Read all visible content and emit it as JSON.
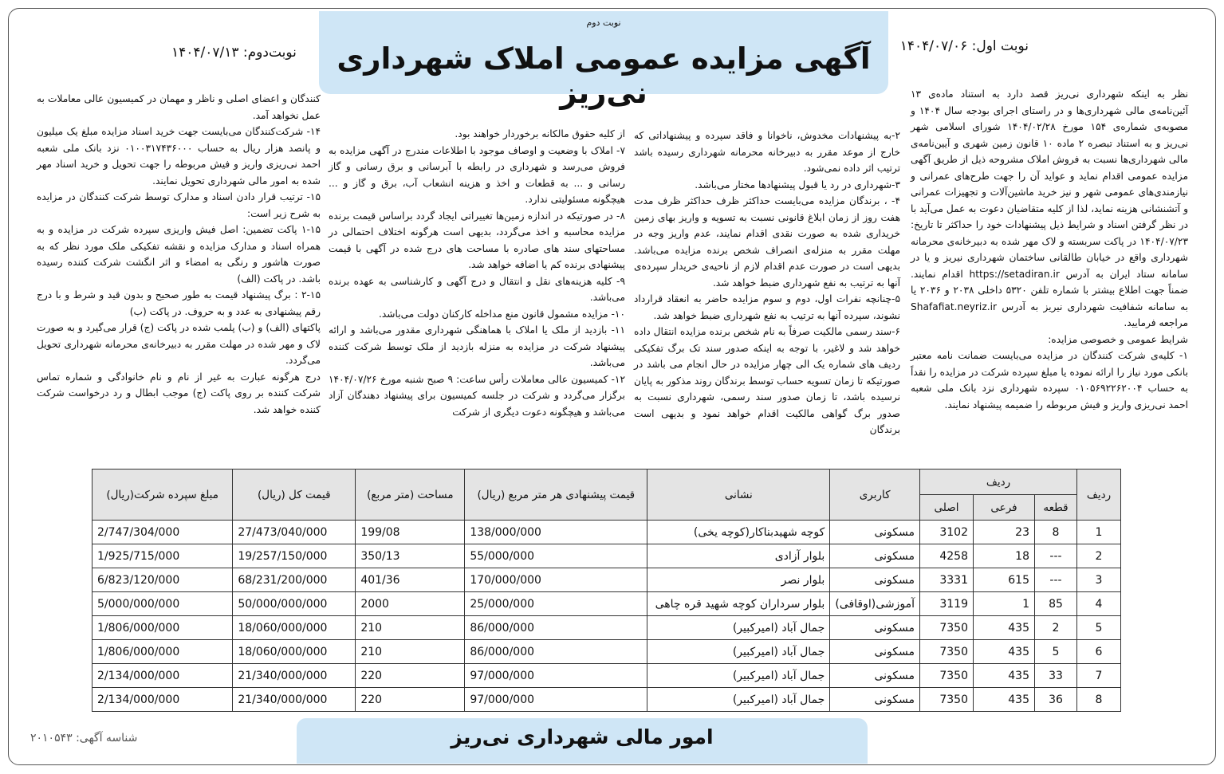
{
  "header": {
    "round_label": "نوبت دوم",
    "title": "آگهی مزایده عمومی املاک شهرداری نی‌ریز",
    "first_round": "نوبت اول: ۱۴۰۴/۰۷/۰۶",
    "second_round": "نوبت‌دوم: ۱۴۰۴/۰۷/۱۳"
  },
  "body": {
    "columns": [
      [
        "نظر به اینکه شهرداری نی‌ریز قصد دارد به استناد ماده‌ی ۱۳ آئین‌نامه‌ی مالی شهرداری‌ها و در راستای اجرای بودجه سال ۱۴۰۴ و مصوبه‌ی شماره‌ی ۱۵۴ مورخ ۱۴۰۴/۰۲/۲۸ شورای اسلامی شهر نی‌ریز و به استناد تبصره ۲ ماده ۱۰ قانون زمین شهری و آیین‌نامه‌ی مالی شهرداری‌ها نسبت به فروش املاک مشروحه ذیل از طریق آگهی مزایده عمومی اقدام نماید و عواید آن را جهت طرح‌های عمرانی و نیازمندی‌های عمومی شهر و نیز خرید ماشین‌آلات و تجهیزات عمرانی و آتشنشانی هزینه نماید، لذا از کلیه متقاضیان دعوت به عمل می‌آید با در نظر گرفتن اسناد و شرایط ذیل پیشنهادات خود را حداکثر تا تاریخ: ۱۴۰۴/۰۷/۲۳ در پاکت سربسته و لاک مهر شده به دبیرخانه‌ی محرمانه شهرداری واقع در خیابان طالقانی ساختمان شهرداری نیریز و یا در سامانه ستاد ایران به آدرس https://setadiran.ir اقدام نمایند. ضمناً جهت اطلاع بیشتر با شماره تلفن ۵۳۲۰ داخلی ۲۰۳۸ و ۲۰۳۶ یا به سامانه شفافیت شهرداری نیریز به آدرس Shafafiat.neyriz.ir مراجعه فرمایید.",
        "شرایط عمومی و خصوصی مزایده:",
        "۱- کلیه‌ی شرکت کنندگان در مزایده می‌بایست ضمانت نامه معتبر بانکی مورد نیاز را ارائه نموده یا مبلغ سپرده شرکت در مزایده را نقداً به حساب ۰۱۰۵۶۹۲۲۶۲۰۰۴ سپرده شهرداری نزد بانک ملی شعبه احمد نی‌ریزی واریز و فیش مربوطه را ضمیمه پیشنهاد نمایند."
      ],
      [
        "۲-به پیشنهادات مخدوش، ناخوانا و فاقد سپرده و پیشنهاداتی که خارج از موعد مقرر به دبیرخانه محرمانه شهرداری رسیده باشد ترتیب اثر داده نمی‌شود.",
        "۳-شهرداری در رد یا قبول پیشنهادها مختار می‌باشد.",
        "۴- ، برندگان مزایده می‌بایست حداکثر ظرف حداکثر ظرف مدت هفت روز از زمان ابلاغ قانونی نسبت به تسویه و واریز بهای زمین خریداری شده به صورت نقدی اقدام نمایند، عدم واریز وجه در مهلت مقرر به منزله‌ی انصراف شخص برنده مزایده می‌باشد. بدیهی است در صورت عدم اقدام لازم از ناحیه‌ی خریدار سپرده‌ی آنها به ترتیب به نفع شهرداری ضبط خواهد شد.",
        "۵-چنانچه نفرات اول، دوم و سوم مزایده حاضر به انعقاد قرارداد نشوند، سپرده آنها به ترتیب به نفع شهرداری ضبط خواهد شد.",
        "۶-سند رسمی مالکیت صرفاً به نام شخص برنده مزایده انتقال داده خواهد شد و لاغیر، با توجه به اینکه صدور سند تک برگ تفکیکی ردیف های شماره یک الی چهار مزایده در حال انجام می باشد در صورتیکه تا زمان تسویه حساب توسط برندگان روند مذکور به پایان نرسیده باشد، تا زمان صدور سند رسمی، شهرداری نسبت به صدور برگ گواهی مالکیت اقدام خواهد نمود و بدیهی است برندگان"
      ],
      [
        "از کلیه حقوق مالکانه برخوردار خواهند بود.",
        "۷- املاک با وضعیت و اوصاف موجود با اطلاعات مندرج در آگهی مزایده به فروش می‌رسد و شهرداری در رابطه با آبرسانی و برق رسانی و گاز رسانی و ... به قطعات و اخذ و هزینه انشعاب آب، برق و گاز و ... هیچگونه مسئولیتی ندارد.",
        "۸- در صورتیکه در اندازه زمین‌ها تغییراتی ایجاد گردد براساس قیمت برنده مزایده محاسبه و اخذ می‌گردد، بدیهی است هرگونه اختلاف احتمالی در مساحتهای سند های صادره با مساحت های درج شده در آگهی با قیمت پیشنهادی برنده کم یا اضافه خواهد شد.",
        "۹- کلیه هزینه‌های نقل و انتقال و درج آگهی و کارشناسی به عهده برنده می‌باشد.",
        "۱۰- مزایده مشمول قانون منع مداخله کارکنان دولت می‌باشد.",
        "۱۱- بازدید از ملک یا املاک با هماهنگی شهرداری مقدور می‌باشد و ارائه پیشنهاد شرکت در مزایده به منزله بازدید از ملک توسط شرکت کننده می‌باشد.",
        "۱۲- کمیسیون عالی معاملات رأس ساعت: ۹ صبح شنبه مورخ ۱۴۰۴/۰۷/۲۶ برگزار می‌گردد و شرکت در جلسه کمیسیون برای پیشنهاد دهندگان آزاد می‌باشد و هیچگونه دعوت دیگری از شرکت"
      ],
      [
        "کنندگان و اعضای اصلی و ناظر و مهمان در کمیسیون عالی معاملات به عمل نخواهد آمد.",
        "۱۴- شرکت‌کنندگان می‌بایست جهت خرید اسناد مزایده مبلغ یک میلیون و پانصد هزار ریال به حساب ۰۱۰۰۳۱۷۴۳۶۰۰۰ نزد بانک ملی شعبه احمد نی‌ریزی واریز و فیش مربوطه را جهت تحویل و خرید اسناد مهر شده به امور مالی شهرداری تحویل نمایند.",
        "۱۵- ترتیب قرار دادن اسناد و مدارک توسط شرکت کنندگان در مزایده به شرح زیر است:",
        "۱-۱۵ پاکت تضمین: اصل فیش واریزی سپرده شرکت در مزایده و به همراه اسناد و مدارک مزایده و نقشه تفکیکی ملک مورد نظر که به صورت هاشور و رنگی به امضاء و اثر انگشت شرکت کننده رسیده باشد. در پاکت (الف)",
        "۲-۱۵ : برگ پیشنهاد قیمت به طور صحیح و بدون قید و شرط و با درج رقم پیشنهادی به عدد و به حروف. در پاکت (ب)",
        "پاکتهای (الف) و (ب) پلمب شده در پاکت (ج) قرار می‌گیرد و به صورت لاک و مهر شده در مهلت مقرر به دبیرخانه‌ی محرمانه شهرداری تحویل می‌گردد.",
        "درج هرگونه عبارت به غیر از نام و نام خانوادگی و شماره تماس شرکت کننده بر روی پاکت (ج) موجب ابطال و رد درخواست شرکت کننده خواهد شد."
      ]
    ]
  },
  "table": {
    "headers": {
      "row": "ردیف",
      "parcel": "ردیف",
      "piece": "قطعه",
      "sub": "فرعی",
      "main": "اصلی",
      "usage": "کاربری",
      "address": "نشانی",
      "unit_price": "قیمت پیشنهادی هر متر مربع (ریال)",
      "area": "مساحت (متر مربع)",
      "total": "قیمت کل (ریال)",
      "deposit": "مبلغ سپرده شرکت(ریال)"
    },
    "rows": [
      [
        "1",
        "8",
        "23",
        "3102",
        "مسکونی",
        "کوچه شهیدبناکار(کوچه یخی)",
        "138/000/000",
        "199/08",
        "27/473/040/000",
        "2/747/304/000"
      ],
      [
        "2",
        "---",
        "18",
        "4258",
        "مسکونی",
        "بلوار آزادی",
        "55/000/000",
        "350/13",
        "19/257/150/000",
        "1/925/715/000"
      ],
      [
        "3",
        "---",
        "615",
        "3331",
        "مسکونی",
        "بلوار نصر",
        "170/000/000",
        "401/36",
        "68/231/200/000",
        "6/823/120/000"
      ],
      [
        "4",
        "85",
        "1",
        "3119",
        "آموزشی(اوقافی)",
        "بلوار سرداران کوچه شهید قره چاهی",
        "25/000/000",
        "2000",
        "50/000/000/000",
        "5/000/000/000"
      ],
      [
        "5",
        "2",
        "435",
        "7350",
        "مسکونی",
        "جمال آباد (امیرکبیر)",
        "86/000/000",
        "210",
        "18/060/000/000",
        "1/806/000/000"
      ],
      [
        "6",
        "5",
        "435",
        "7350",
        "مسکونی",
        "جمال آباد (امیرکبیر)",
        "86/000/000",
        "210",
        "18/060/000/000",
        "1/806/000/000"
      ],
      [
        "7",
        "33",
        "435",
        "7350",
        "مسکونی",
        "جمال آباد (امیرکبیر)",
        "97/000/000",
        "220",
        "21/340/000/000",
        "2/134/000/000"
      ],
      [
        "8",
        "36",
        "435",
        "7350",
        "مسکونی",
        "جمال آباد (امیرکبیر)",
        "97/000/000",
        "220",
        "21/340/000/000",
        "2/134/000/000"
      ]
    ]
  },
  "footer": {
    "title": "امور مالی شهرداری نی‌ریز",
    "ad_id": "شناسه آگهی: ۲۰۱۰۵۴۳"
  }
}
